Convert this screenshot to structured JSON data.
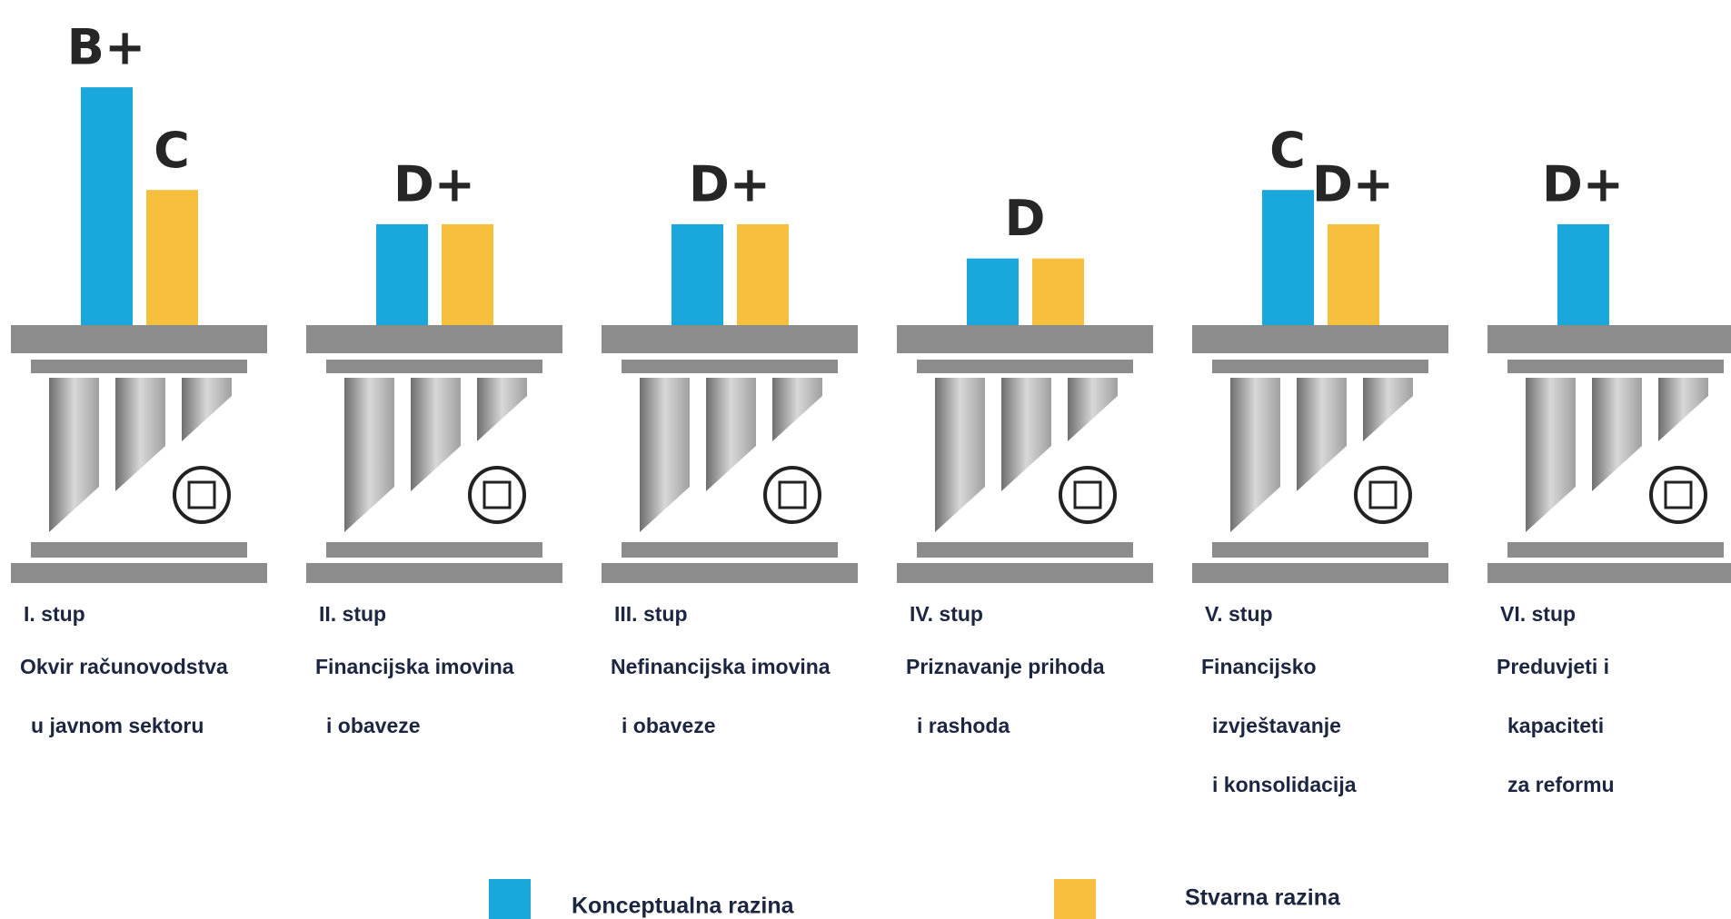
{
  "chart_data": {
    "type": "bar",
    "categories": [
      "I. stup",
      "II. stup",
      "III. stup",
      "IV. stup",
      "V. stup",
      "VI. stup"
    ],
    "descriptions": [
      [
        "Okvir računovodstva",
        "u javnom sektoru"
      ],
      [
        "Financijska imovina",
        "i obaveze"
      ],
      [
        "Nefinancijska imovina",
        "i obaveze"
      ],
      [
        "Priznavanje prihoda",
        "i rashoda"
      ],
      [
        "Financijsko",
        "izvještavanje",
        "i konsolidacija"
      ],
      [
        "Preduvjeti i",
        "kapaciteti",
        "za reformu"
      ]
    ],
    "series": [
      {
        "name": "Konceptualna razina",
        "color": "#19a7dc",
        "values": [
          7,
          3,
          3,
          2,
          4,
          3
        ],
        "value_labels": [
          "B+",
          "D+",
          "D+",
          "D",
          "C",
          "D+"
        ]
      },
      {
        "name": "Stvarna razina",
        "color": "#f6c03e",
        "values": [
          4,
          3,
          3,
          2,
          3,
          null
        ],
        "value_labels": [
          "C",
          null,
          null,
          null,
          "D+",
          null
        ]
      }
    ],
    "ylim": [
      0,
      7
    ]
  }
}
